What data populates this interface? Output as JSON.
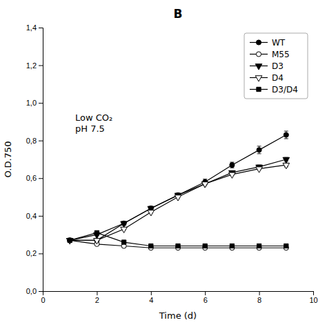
{
  "chart_data": {
    "type": "line",
    "title": "B",
    "x_label": "Time (d)",
    "y_label": "O.D.750",
    "annotation": "Low CO₂\npH 7.5",
    "x": [
      1,
      2,
      3,
      4,
      5,
      6,
      7,
      8,
      9
    ],
    "xlim": [
      0,
      10
    ],
    "xticks": [
      0,
      2,
      4,
      6,
      8,
      10
    ],
    "ylim": [
      0.0,
      1.4
    ],
    "yticks": [
      {
        "value": 0.0,
        "label": "0,0"
      },
      {
        "value": 0.2,
        "label": "0,2"
      },
      {
        "value": 0.4,
        "label": "0,4"
      },
      {
        "value": 0.6,
        "label": "0,6"
      },
      {
        "value": 0.8,
        "label": "0,8"
      },
      {
        "value": 1.0,
        "label": "1,0"
      },
      {
        "value": 1.2,
        "label": "1,2"
      },
      {
        "value": 1.4,
        "label": "1,4"
      }
    ],
    "grid": false,
    "legend": "upper right",
    "series": [
      {
        "name": "WT",
        "color": "black",
        "marker": "circle",
        "values": [
          0.27,
          0.27,
          0.36,
          0.44,
          0.51,
          0.58,
          0.67,
          0.75,
          0.83
        ],
        "yerr": [
          0.01,
          0.01,
          0.01,
          0.01,
          0.01,
          0.015,
          0.015,
          0.02,
          0.02
        ]
      },
      {
        "name": "M55",
        "color": "black",
        "marker": "circle-open",
        "values": [
          0.27,
          0.25,
          0.24,
          0.23,
          0.23,
          0.23,
          0.23,
          0.23,
          0.23
        ],
        "yerr": [
          0.005,
          0.005,
          0.005,
          0.005,
          0.005,
          0.005,
          0.005,
          0.005,
          0.005
        ]
      },
      {
        "name": "D3",
        "color": "black",
        "marker": "triangle-down",
        "values": [
          0.27,
          0.3,
          0.36,
          0.44,
          0.51,
          0.57,
          0.63,
          0.66,
          0.7
        ],
        "yerr": [
          0.005,
          0.005,
          0.005,
          0.005,
          0.005,
          0.005,
          0.005,
          0.01,
          0.01
        ]
      },
      {
        "name": "D4",
        "color": "black",
        "marker": "triangle-down-open",
        "values": [
          0.27,
          0.27,
          0.33,
          0.42,
          0.5,
          0.57,
          0.62,
          0.65,
          0.67
        ],
        "yerr": [
          0.005,
          0.005,
          0.005,
          0.005,
          0.005,
          0.005,
          0.005,
          0.005,
          0.01
        ]
      },
      {
        "name": "D3/D4",
        "color": "black",
        "marker": "square",
        "values": [
          0.27,
          0.31,
          0.26,
          0.24,
          0.24,
          0.24,
          0.24,
          0.24,
          0.24
        ],
        "yerr": [
          0.005,
          0.005,
          0.005,
          0.005,
          0.005,
          0.005,
          0.005,
          0.005,
          0.005
        ]
      }
    ]
  }
}
